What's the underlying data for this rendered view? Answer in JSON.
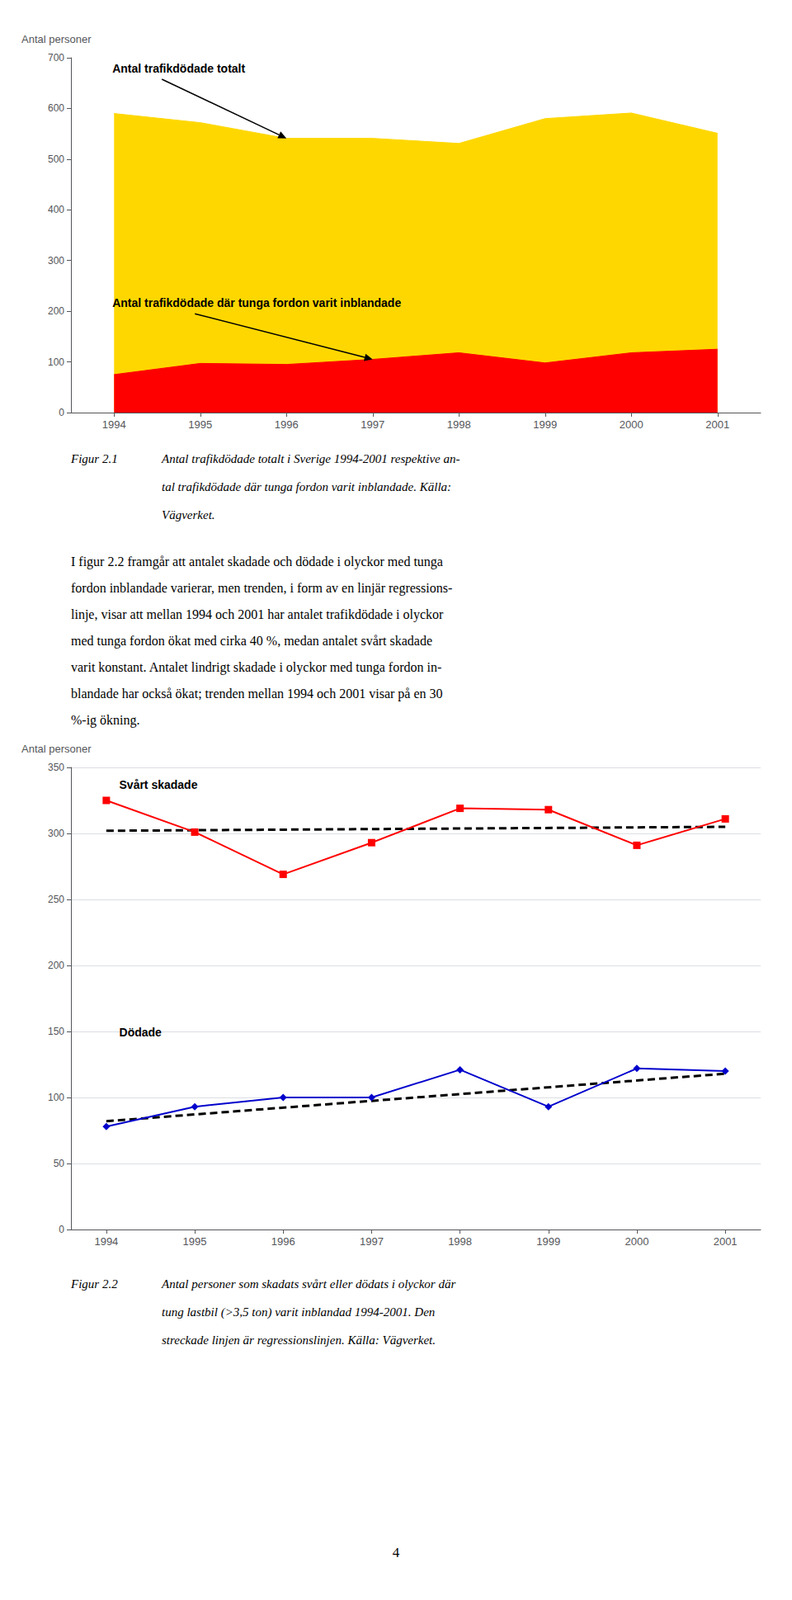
{
  "chart_data": [
    {
      "type": "area",
      "ylabel": "Antal personer",
      "x": [
        1994,
        1995,
        1996,
        1997,
        1998,
        1999,
        2000,
        2001
      ],
      "xlim": [
        1993.5,
        2001.5
      ],
      "xticks": [
        1994,
        1995,
        1996,
        1997,
        1998,
        1999,
        2000,
        2001
      ],
      "ylim": [
        0,
        700
      ],
      "yticks": [
        0,
        100,
        200,
        300,
        400,
        500,
        600,
        700
      ],
      "grid": false,
      "series": [
        {
          "name": "Antal trafikdödade totalt",
          "color": "#FFD700",
          "values": [
            590,
            572,
            541,
            541,
            531,
            580,
            591,
            551
          ]
        },
        {
          "name": "Antal trafikdödade där tunga fordon varit inblandade",
          "color": "#FF0000",
          "values": [
            75,
            97,
            95,
            105,
            118,
            98,
            118,
            125
          ]
        }
      ],
      "caption": {
        "label": "Figur 2.1",
        "lines": [
          "Antal trafikdödade totalt i Sverige 1994-2001 respektive an-",
          "tal trafikdödade där tunga fordon varit inblandade. Källa:",
          "Vägverket."
        ]
      }
    },
    {
      "type": "line",
      "ylabel": "Antal personer",
      "x": [
        1994,
        1995,
        1996,
        1997,
        1998,
        1999,
        2000,
        2001
      ],
      "xlim": [
        1993.6,
        2001.4
      ],
      "xticks": [
        1994,
        1995,
        1996,
        1997,
        1998,
        1999,
        2000,
        2001
      ],
      "ylim": [
        0,
        350
      ],
      "yticks": [
        0,
        50,
        100,
        150,
        200,
        250,
        300,
        350
      ],
      "grid": true,
      "series": [
        {
          "name": "Svårt skadade",
          "color": "#FF0000",
          "marker": "square",
          "values": [
            325,
            301,
            269,
            293,
            319,
            318,
            291,
            311
          ]
        },
        {
          "name": "Dödade",
          "color": "#0000CC",
          "marker": "diamond",
          "values": [
            78,
            93,
            100,
            100,
            121,
            93,
            122,
            120
          ]
        },
        {
          "x": [
            1994,
            2001
          ],
          "values": [
            302,
            305
          ],
          "color": "#000000",
          "line_style": "dashed"
        },
        {
          "x": [
            1994,
            2001
          ],
          "values": [
            82,
            118
          ],
          "color": "#000000",
          "line_style": "dashed"
        }
      ],
      "caption": {
        "label": "Figur 2.2",
        "lines": [
          "Antal personer som skadats svårt eller dödats i olyckor där",
          "tung lastbil (>3,5 ton) varit inblandad 1994-2001. Den",
          "streckade linjen är regressionslinjen. Källa: Vägverket."
        ]
      }
    }
  ],
  "body_text": [
    "I figur 2.2 framgår att antalet skadade och dödade i olyckor med tunga",
    "fordon inblandade varierar, men trenden, i form av en linjär regressions-",
    "linje, visar att mellan 1994 och 2001 har antalet trafikdödade i olyckor",
    "med tunga fordon ökat med cirka 40 %, medan antalet svårt skadade",
    "varit konstant. Antalet lindrigt skadade i olyckor med tunga fordon in-",
    "blandade har också ökat; trenden mellan 1994 och 2001 visar på en 30",
    "%-ig ökning."
  ],
  "page_number": "4"
}
